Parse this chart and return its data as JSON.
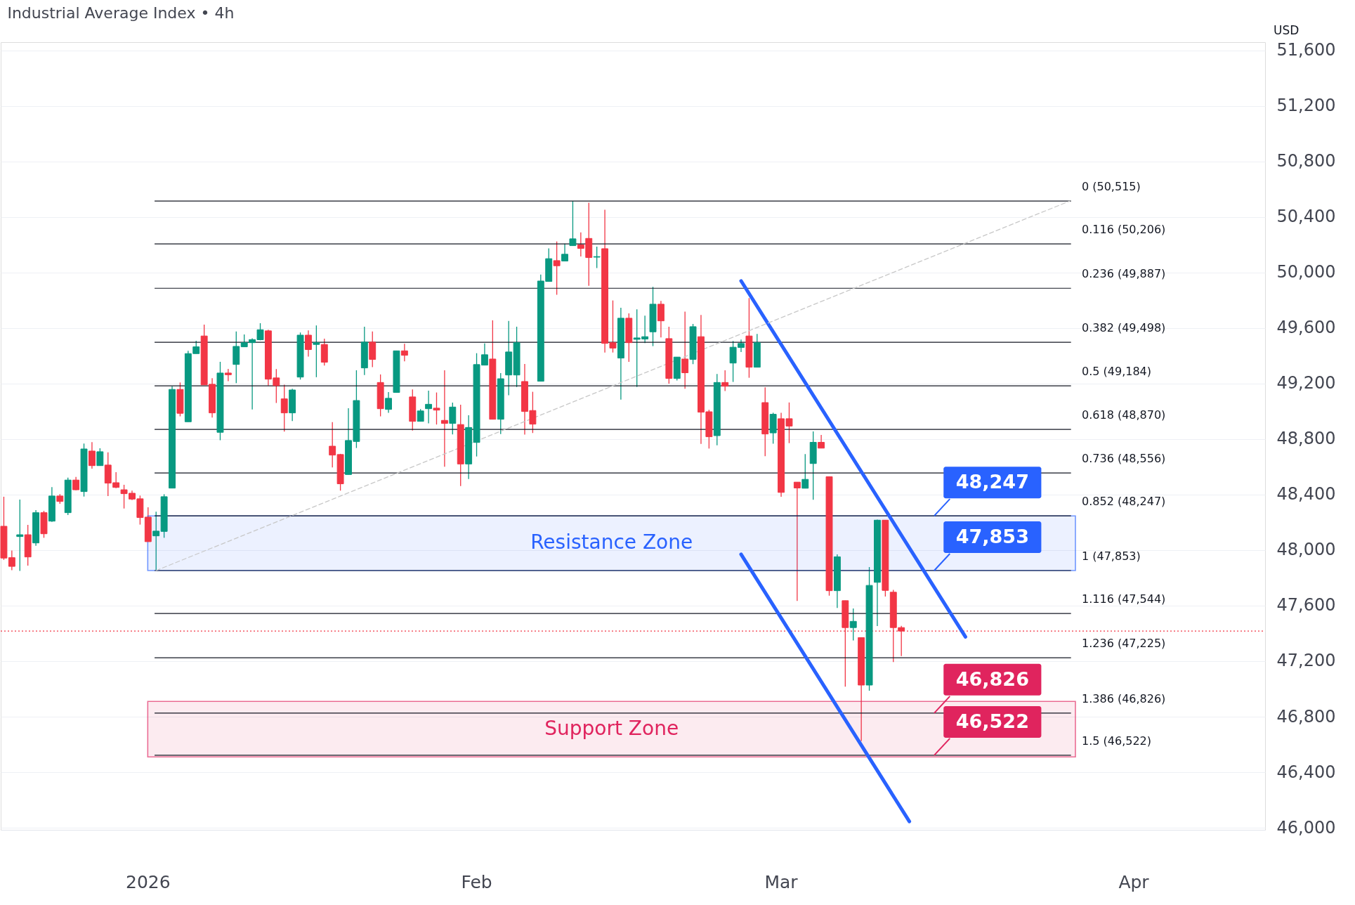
{
  "chart_data": {
    "type": "candlestick",
    "title": "Industrial Average Index • 4h",
    "categories": [
      null,
      null,
      null,
      null,
      null,
      null,
      null,
      null,
      null,
      null,
      null,
      null,
      null,
      null,
      null,
      null,
      null,
      null,
      "2026",
      null,
      null,
      null,
      null,
      null,
      null,
      null,
      null,
      null,
      null,
      null,
      null,
      null,
      null,
      null,
      null,
      null,
      null,
      null,
      null,
      null,
      null,
      null,
      null,
      null,
      null,
      null,
      null,
      null,
      null,
      null,
      null,
      null,
      null,
      null,
      null,
      null,
      null,
      null,
      null,
      "Feb",
      null,
      null,
      null,
      null,
      null,
      null,
      null,
      null,
      null,
      null,
      null,
      null,
      null,
      null,
      null,
      null,
      null,
      null,
      null,
      null,
      null,
      null,
      null,
      null,
      null,
      null,
      null,
      null,
      null,
      null,
      null,
      null,
      null,
      null,
      null,
      null,
      null,
      "Mar",
      null,
      null,
      null,
      null,
      null,
      null,
      null,
      null,
      null,
      null,
      null,
      null,
      null,
      null,
      null,
      null,
      null,
      null,
      null,
      null,
      null,
      null,
      null,
      null,
      null,
      null,
      null,
      null,
      null,
      null,
      null,
      null,
      null,
      null,
      null,
      null,
      null,
      null,
      null,
      null,
      null,
      null,
      null,
      "Apr",
      null,
      null,
      null,
      null,
      null,
      null,
      null,
      null,
      null,
      null,
      null,
      null,
      null,
      null,
      null,
      null
    ],
    "ohlc": [
      [
        48172,
        48385,
        47930,
        47943
      ],
      [
        47946,
        47997,
        47855,
        47883
      ],
      [
        48098,
        48364,
        47850,
        48111
      ],
      [
        48111,
        48182,
        47888,
        47951
      ],
      [
        48052,
        48289,
        48032,
        48270
      ],
      [
        48270,
        48283,
        48089,
        48118
      ],
      [
        48209,
        48454,
        48204,
        48390
      ],
      [
        48390,
        48403,
        48334,
        48351
      ],
      [
        48270,
        48523,
        48253,
        48505
      ],
      [
        48505,
        48528,
        48432,
        48435
      ],
      [
        48422,
        48768,
        48386,
        48729
      ],
      [
        48714,
        48778,
        48587,
        48609
      ],
      [
        48609,
        48734,
        48609,
        48709
      ],
      [
        48613,
        48705,
        48390,
        48483
      ],
      [
        48486,
        48562,
        48446,
        48452
      ],
      [
        48435,
        48471,
        48300,
        48407
      ],
      [
        48410,
        48429,
        48361,
        48368
      ],
      [
        48370,
        48393,
        48184,
        48235
      ],
      [
        48238,
        48309,
        48061,
        48061
      ],
      [
        48103,
        48277,
        47855,
        48137
      ],
      [
        48135,
        48403,
        48089,
        48385
      ],
      [
        48447,
        49181,
        48447,
        49158
      ],
      [
        49158,
        49208,
        48964,
        48986
      ],
      [
        48925,
        49436,
        48925,
        49416
      ],
      [
        49416,
        49509,
        49416,
        49465
      ],
      [
        49543,
        49625,
        49191,
        49191
      ],
      [
        49195,
        49239,
        48955,
        48989
      ],
      [
        48849,
        49357,
        48792,
        49276
      ],
      [
        49276,
        49306,
        49217,
        49264
      ],
      [
        49338,
        49575,
        49203,
        49468
      ],
      [
        49465,
        49554,
        49465,
        49495
      ],
      [
        49495,
        49526,
        49014,
        49517
      ],
      [
        49516,
        49635,
        49512,
        49588
      ],
      [
        49580,
        49588,
        49186,
        49232
      ],
      [
        49241,
        49305,
        49060,
        49185
      ],
      [
        49090,
        49192,
        48854,
        48989
      ],
      [
        48989,
        49163,
        48930,
        49154
      ],
      [
        49247,
        49568,
        49229,
        49549
      ],
      [
        49549,
        49583,
        49394,
        49445
      ],
      [
        49482,
        49619,
        49246,
        49495
      ],
      [
        49482,
        49524,
        49330,
        49354
      ],
      [
        48749,
        48922,
        48596,
        48685
      ],
      [
        48689,
        48694,
        48429,
        48478
      ],
      [
        48545,
        49023,
        48545,
        48790
      ],
      [
        48783,
        49296,
        48736,
        49078
      ],
      [
        49313,
        49610,
        49262,
        49499
      ],
      [
        49499,
        49575,
        49318,
        49374
      ],
      [
        49208,
        49266,
        48964,
        49019
      ],
      [
        49014,
        49139,
        48989,
        49094
      ],
      [
        49136,
        49436,
        49136,
        49436
      ],
      [
        49436,
        49487,
        49360,
        49404
      ],
      [
        49104,
        49158,
        48862,
        48928
      ],
      [
        48928,
        49016,
        48928,
        49003
      ],
      [
        49019,
        49149,
        48913,
        49051
      ],
      [
        49023,
        49136,
        48905,
        49009
      ],
      [
        48935,
        49296,
        48601,
        48913
      ],
      [
        48913,
        49063,
        48834,
        49031
      ],
      [
        48905,
        49048,
        48462,
        48621
      ],
      [
        48621,
        48972,
        48513,
        48884
      ],
      [
        48776,
        49419,
        48675,
        49337
      ],
      [
        49333,
        49489,
        49333,
        49408
      ],
      [
        49377,
        49656,
        48943,
        48943
      ],
      [
        48943,
        49276,
        48837,
        49235
      ],
      [
        49262,
        49651,
        49116,
        49428
      ],
      [
        49262,
        49610,
        49175,
        49495
      ],
      [
        49215,
        49342,
        48832,
        48999
      ],
      [
        49006,
        49141,
        48844,
        48908
      ],
      [
        49217,
        49985,
        49217,
        49939
      ],
      [
        49936,
        50174,
        49936,
        50100
      ],
      [
        50086,
        50224,
        49840,
        50049
      ],
      [
        50083,
        50208,
        50083,
        50132
      ],
      [
        50194,
        50515,
        50194,
        50243
      ],
      [
        50199,
        50289,
        50116,
        50174
      ],
      [
        50246,
        50503,
        49904,
        50108
      ],
      [
        50111,
        50187,
        50032,
        50115
      ],
      [
        50172,
        50452,
        49424,
        49490
      ],
      [
        49495,
        49799,
        49424,
        49456
      ],
      [
        49384,
        49747,
        49085,
        49671
      ],
      [
        49671,
        49706,
        49357,
        49495
      ],
      [
        49519,
        49735,
        49175,
        49529
      ],
      [
        49521,
        49689,
        49492,
        49538
      ],
      [
        49573,
        49897,
        49470,
        49772
      ],
      [
        49772,
        49796,
        49532,
        49652
      ],
      [
        49524,
        49610,
        49200,
        49237
      ],
      [
        49237,
        49391,
        49222,
        49391
      ],
      [
        49377,
        49718,
        49163,
        49278
      ],
      [
        49374,
        49630,
        49340,
        49610
      ],
      [
        49538,
        49694,
        48766,
        48994
      ],
      [
        48997,
        49011,
        48732,
        48817
      ],
      [
        48825,
        49269,
        48756,
        49208
      ],
      [
        49208,
        49296,
        49146,
        49181
      ],
      [
        49348,
        49507,
        49212,
        49462
      ],
      [
        49460,
        49517,
        49428,
        49489
      ],
      [
        49543,
        49816,
        49242,
        49318
      ],
      [
        49318,
        49558,
        49318,
        49495
      ],
      [
        49063,
        49173,
        48677,
        48837
      ],
      [
        48845,
        48990,
        48767,
        48979
      ],
      [
        48947,
        48990,
        48384,
        48416
      ],
      [
        48947,
        49064,
        48771,
        48894
      ],
      [
        48490,
        48490,
        47634,
        48448
      ],
      [
        48446,
        48692,
        48446,
        48510
      ],
      [
        48624,
        48856,
        48363,
        48777
      ],
      [
        48777,
        48830,
        48735,
        48735
      ],
      [
        48529,
        48531,
        47672,
        47708
      ],
      [
        47708,
        47969,
        47583,
        47952
      ],
      [
        47636,
        47636,
        47017,
        47442
      ],
      [
        47442,
        47580,
        47349,
        47487
      ],
      [
        47370,
        47370,
        46624,
        47028
      ],
      [
        47028,
        47878,
        46987,
        47746
      ],
      [
        47768,
        48220,
        47453,
        48216
      ],
      [
        48216,
        48216,
        47666,
        47710
      ],
      [
        47697,
        47714,
        47194,
        47442
      ],
      [
        47442,
        47455,
        47237,
        47417
      ],
      null,
      null,
      null,
      null,
      null,
      null,
      null,
      null,
      null,
      null,
      null,
      null,
      null,
      null,
      null,
      null,
      null,
      null,
      null,
      null,
      null,
      null,
      null,
      null,
      null,
      null,
      null,
      null,
      null,
      null,
      null,
      null,
      null,
      null,
      null,
      null,
      null,
      null,
      null,
      null,
      null,
      null,
      null,
      null,
      null
    ],
    "colors": [
      "#f23645",
      "#f23645",
      "#089981",
      "#f23645",
      "#089981",
      "#f23645",
      "#089981",
      "#f23645",
      "#089981",
      "#f23645",
      "#089981",
      "#f23645",
      "#089981",
      "#f23645",
      "#f23645",
      "#f23645",
      "#f23645",
      "#f23645",
      "#f23645",
      "#089981",
      "#089981",
      "#089981",
      "#f23645",
      "#089981",
      "#089981",
      "#f23645",
      "#f23645",
      "#089981",
      "#f23645",
      "#089981",
      "#089981",
      "#089981",
      "#089981",
      "#f23645",
      "#f23645",
      "#f23645",
      "#089981",
      "#089981",
      "#f23645",
      "#089981",
      "#f23645",
      "#f23645",
      "#f23645",
      "#089981",
      "#089981",
      "#089981",
      "#f23645",
      "#f23645",
      "#089981",
      "#089981",
      "#f23645",
      "#f23645",
      "#089981",
      "#089981",
      "#f23645",
      "#f23645",
      "#089981",
      "#f23645",
      "#089981",
      "#089981",
      "#089981",
      "#f23645",
      "#089981",
      "#089981",
      "#089981",
      "#f23645",
      "#f23645",
      "#089981",
      "#089981",
      "#f23645",
      "#089981",
      "#089981",
      "#f23645",
      "#f23645",
      "#089981",
      "#f23645",
      "#f23645",
      "#089981",
      "#f23645",
      "#089981",
      "#089981",
      "#089981",
      "#f23645",
      "#f23645",
      "#089981",
      "#f23645",
      "#089981",
      "#f23645",
      "#f23645",
      "#089981",
      "#f23645",
      "#089981",
      "#089981",
      "#f23645",
      "#089981",
      "#f23645",
      "#089981",
      "#f23645",
      "#f23645",
      "#f23645",
      "#089981",
      "#089981",
      "#f23645",
      "#f23645",
      "#089981",
      "#f23645",
      "#089981",
      "#f23645",
      "#089981",
      "#089981",
      "#f23645",
      "#f23645",
      "#f23645",
      null,
      null,
      null,
      null,
      null,
      null,
      null,
      null,
      null,
      null,
      null,
      null,
      null,
      null,
      null,
      null,
      null,
      null,
      null,
      null,
      null,
      null,
      null,
      null,
      null,
      null,
      null,
      null,
      null,
      null,
      null,
      null,
      null,
      null,
      null,
      null,
      null,
      null,
      null,
      null,
      null,
      null,
      null,
      null,
      null
    ],
    "series": [
      {
        "type": "line",
        "color": "#2962ff",
        "values": [
          null,
          null,
          null,
          null,
          null,
          null,
          null,
          null,
          null,
          null,
          null,
          null,
          null,
          null,
          null,
          null,
          null,
          null,
          null,
          null,
          null,
          null,
          null,
          null,
          null,
          null,
          null,
          null,
          null,
          null,
          null,
          null,
          null,
          null,
          null,
          null,
          null,
          null,
          null,
          null,
          null,
          null,
          null,
          null,
          null,
          null,
          null,
          null,
          null,
          null,
          null,
          null,
          null,
          null,
          null,
          null,
          null,
          null,
          null,
          null,
          null,
          null,
          null,
          null,
          null,
          null,
          null,
          null,
          null,
          null,
          null,
          null,
          null,
          null,
          null,
          null,
          null,
          null,
          null,
          null,
          null,
          null,
          null,
          null,
          null,
          null,
          null,
          null,
          null,
          null,
          null,
          null,
          49940,
          null,
          null,
          null,
          null,
          null,
          null,
          null,
          null,
          null,
          null,
          null,
          null,
          null,
          null,
          null,
          null,
          null,
          null,
          null,
          null,
          null,
          null,
          null,
          null,
          null,
          null,
          null,
          47375,
          null,
          null,
          null,
          null,
          null,
          null,
          null,
          null,
          null,
          null,
          null,
          null,
          null,
          null,
          null,
          null,
          null,
          null,
          null,
          null,
          null,
          null,
          null,
          null,
          null,
          null,
          null,
          null,
          null,
          null,
          null,
          null,
          null,
          null,
          null,
          null,
          null
        ]
      },
      {
        "type": "line",
        "color": "#2962ff",
        "values": [
          null,
          null,
          null,
          null,
          null,
          null,
          null,
          null,
          null,
          null,
          null,
          null,
          null,
          null,
          null,
          null,
          null,
          null,
          null,
          null,
          null,
          null,
          null,
          null,
          null,
          null,
          null,
          null,
          null,
          null,
          null,
          null,
          null,
          null,
          null,
          null,
          null,
          null,
          null,
          null,
          null,
          null,
          null,
          null,
          null,
          null,
          null,
          null,
          null,
          null,
          null,
          null,
          null,
          null,
          null,
          null,
          null,
          null,
          null,
          null,
          null,
          null,
          null,
          null,
          null,
          null,
          null,
          null,
          null,
          null,
          null,
          null,
          null,
          null,
          null,
          null,
          null,
          null,
          null,
          null,
          null,
          null,
          null,
          null,
          null,
          null,
          null,
          null,
          null,
          null,
          null,
          null,
          47970,
          null,
          null,
          null,
          null,
          null,
          null,
          null,
          null,
          null,
          null,
          null,
          null,
          null,
          null,
          null,
          null,
          null,
          null,
          null,
          null,
          46045,
          null,
          null,
          null,
          null,
          null,
          null,
          null,
          null,
          null,
          null,
          null,
          null,
          null,
          null,
          null,
          null,
          null,
          null,
          null,
          null,
          null,
          null,
          null,
          null,
          null,
          null,
          null,
          null,
          null,
          null,
          null,
          null,
          null,
          null,
          null,
          null,
          null,
          null,
          null,
          null,
          null,
          null,
          null,
          null
        ]
      },
      {
        "type": "line",
        "color": "#c8c8c8",
        "line_style": "dashed",
        "values": [
          null,
          null,
          null,
          null,
          null,
          null,
          null,
          null,
          null,
          null,
          null,
          null,
          null,
          null,
          null,
          null,
          null,
          null,
          null,
          47853,
          null,
          null,
          null,
          null,
          null,
          null,
          null,
          null,
          null,
          null,
          null,
          null,
          null,
          null,
          null,
          null,
          null,
          null,
          null,
          null,
          null,
          null,
          null,
          null,
          null,
          null,
          null,
          null,
          null,
          null,
          null,
          null,
          null,
          null,
          null,
          null,
          null,
          null,
          null,
          null,
          null,
          null,
          null,
          null,
          null,
          null,
          null,
          null,
          null,
          null,
          null,
          null,
          null,
          null,
          null,
          null,
          null,
          null,
          null,
          null,
          null,
          null,
          null,
          null,
          null,
          null,
          null,
          null,
          null,
          null,
          null,
          null,
          null,
          null,
          null,
          null,
          null,
          null,
          null,
          null,
          null,
          null,
          null,
          null,
          null,
          null,
          null,
          null,
          null,
          null,
          null,
          null,
          null,
          null,
          null,
          null,
          null,
          null,
          null,
          null,
          null,
          null,
          null,
          null,
          null,
          null,
          null,
          null,
          null,
          null,
          null,
          null,
          null,
          50515,
          null,
          null,
          null,
          null,
          null,
          null,
          null,
          null,
          null,
          null,
          null,
          null,
          null,
          null,
          null,
          null,
          null,
          null,
          null,
          null,
          null,
          null,
          null,
          null
        ]
      }
    ],
    "ylim": [
      45985,
      51660
    ],
    "yticks": [
      {
        "value": 46000,
        "label": "46,000"
      },
      {
        "value": 46400,
        "label": "46,400"
      },
      {
        "value": 46800,
        "label": "46,800"
      },
      {
        "value": 47200,
        "label": "47,200"
      },
      {
        "value": 47600,
        "label": "47,600"
      },
      {
        "value": 48000,
        "label": "48,000"
      },
      {
        "value": 48400,
        "label": "48,400"
      },
      {
        "value": 48800,
        "label": "48,800"
      },
      {
        "value": 49200,
        "label": "49,200"
      },
      {
        "value": 49600,
        "label": "49,600"
      },
      {
        "value": 50000,
        "label": "50,000"
      },
      {
        "value": 50400,
        "label": "50,400"
      },
      {
        "value": 50800,
        "label": "50,800"
      },
      {
        "value": 51200,
        "label": "51,200"
      },
      {
        "value": 51600,
        "label": "51,600"
      }
    ],
    "grid": "y",
    "ref_lines": [
      {
        "axis": "y",
        "value": 50515,
        "label": "0 (50,515)",
        "color": "#131722"
      },
      {
        "axis": "y",
        "value": 50206,
        "label": "0.116 (50,206)",
        "color": "#131722"
      },
      {
        "axis": "y",
        "value": 49887,
        "label": "0.236 (49,887)",
        "color": "#131722"
      },
      {
        "axis": "y",
        "value": 49498,
        "label": "0.382 (49,498)",
        "color": "#131722"
      },
      {
        "axis": "y",
        "value": 49184,
        "label": "0.5 (49,184)",
        "color": "#131722"
      },
      {
        "axis": "y",
        "value": 48870,
        "label": "0.618 (48,870)",
        "color": "#131722"
      },
      {
        "axis": "y",
        "value": 48556,
        "label": "0.736 (48,556)",
        "color": "#131722"
      },
      {
        "axis": "y",
        "value": 48247,
        "label": "0.852 (48,247)",
        "color": "#131722"
      },
      {
        "axis": "y",
        "value": 47853,
        "label": "1 (47,853)",
        "color": "#131722"
      },
      {
        "axis": "y",
        "value": 47544,
        "label": "1.116 (47,544)",
        "color": "#131722"
      },
      {
        "axis": "y",
        "value": 47225,
        "label": "1.236 (47,225)",
        "color": "#131722"
      },
      {
        "axis": "y",
        "value": 46826,
        "label": "1.386 (46,826)",
        "color": "#131722"
      },
      {
        "axis": "y",
        "value": 46522,
        "label": "1.5 (46,522)",
        "color": "#131722"
      },
      {
        "axis": "y",
        "value": 47417,
        "color": "#f23645",
        "line_style": "dotted"
      }
    ],
    "bands": [
      {
        "axis": "y",
        "from": 47853,
        "to": 48247,
        "label": "Resistance Zone",
        "color": "#2962ff"
      },
      {
        "axis": "y",
        "from": 46510,
        "to": 46910,
        "label": "Support Zone",
        "color": "#e0245e"
      }
    ],
    "annotations": [
      "USD",
      {
        "text": "48,247",
        "y": 48247
      },
      {
        "text": "47,853",
        "y": 47853
      },
      {
        "text": "46,826",
        "y": 46826
      },
      {
        "text": "46,522",
        "y": 46522
      }
    ]
  }
}
